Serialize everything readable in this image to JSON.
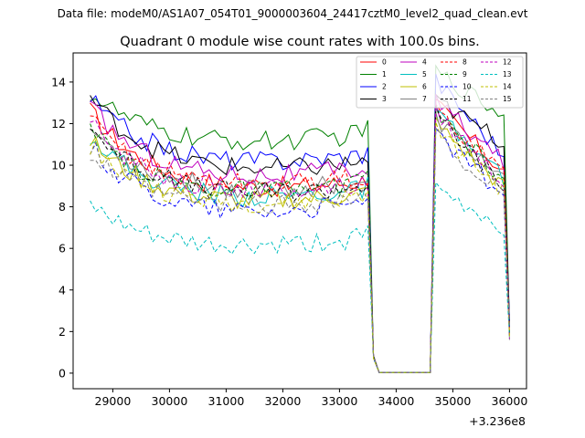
{
  "header": {
    "data_file_label": "Data file: modeM0/AS1A07_054T01_9000003604_24417cztM0_level2_quad_clean.evt"
  },
  "chart_data": {
    "type": "line",
    "title": "Quadrant 0 module wise count rates with 100.0s bins.",
    "xlabel": "",
    "ylabel": "",
    "x_offset_label": "+3.236e8",
    "xlim": [
      28300,
      36300
    ],
    "ylim": [
      -0.75,
      15.4
    ],
    "x_ticks": [
      29000,
      30000,
      31000,
      32000,
      33000,
      34000,
      35000,
      36000
    ],
    "y_ticks": [
      0,
      2,
      4,
      6,
      8,
      10,
      12,
      14
    ],
    "grid": false,
    "legend_position": "top-right",
    "legend_columns": 4,
    "x_start": 28600,
    "x_step": 100,
    "n_points": 75,
    "profile": {
      "first_segment_end_index": 49,
      "drop1": 0.78,
      "drop2": 0.03,
      "gap_start_index": 52,
      "gap_end_index": 60,
      "second_segment_start_index": 61,
      "second_segment_end_index": 73,
      "last_value_fraction": 0.17
    },
    "series": [
      {
        "name": "0",
        "color": "#ff0000",
        "dash": "solid",
        "start": 12.6,
        "mid": 8.3,
        "second_peak": 12.9,
        "second_end": 9.7
      },
      {
        "name": "1",
        "color": "#008000",
        "dash": "solid",
        "start": 13.5,
        "mid": 10.6,
        "second_peak": 14.5,
        "second_end": 12.4
      },
      {
        "name": "2",
        "color": "#0000ff",
        "dash": "solid",
        "start": 13.2,
        "mid": 9.6,
        "second_peak": 14.1,
        "second_end": 10.5
      },
      {
        "name": "3",
        "color": "#000000",
        "dash": "solid",
        "start": 13.3,
        "mid": 9.2,
        "second_peak": 13.1,
        "second_end": 11.1
      },
      {
        "name": "4",
        "color": "#bf00bf",
        "dash": "solid",
        "start": 12.8,
        "mid": 8.9,
        "second_peak": 13.1,
        "second_end": 10.1
      },
      {
        "name": "5",
        "color": "#00bfbf",
        "dash": "solid",
        "start": 11.5,
        "mid": 7.9,
        "second_peak": 12.4,
        "second_end": 9.4
      },
      {
        "name": "6",
        "color": "#bfbf00",
        "dash": "solid",
        "start": 11.2,
        "mid": 7.7,
        "second_peak": 12.0,
        "second_end": 8.9
      },
      {
        "name": "7",
        "color": "#808080",
        "dash": "solid",
        "start": 11.8,
        "mid": 8.3,
        "second_peak": 12.2,
        "second_end": 9.3
      },
      {
        "name": "8",
        "color": "#ff0000",
        "dash": "dashed",
        "start": 12.2,
        "mid": 8.5,
        "second_peak": 12.6,
        "second_end": 9.7
      },
      {
        "name": "9",
        "color": "#008000",
        "dash": "dashed",
        "start": 11.6,
        "mid": 8.2,
        "second_peak": 12.5,
        "second_end": 9.3
      },
      {
        "name": "10",
        "color": "#0000ff",
        "dash": "dashed",
        "start": 10.9,
        "mid": 7.2,
        "second_peak": 11.4,
        "second_end": 8.6
      },
      {
        "name": "11",
        "color": "#000000",
        "dash": "dashed",
        "start": 11.9,
        "mid": 8.1,
        "second_peak": 12.5,
        "second_end": 8.9
      },
      {
        "name": "12",
        "color": "#bf00bf",
        "dash": "dashed",
        "start": 12.0,
        "mid": 8.2,
        "second_peak": 12.6,
        "second_end": 9.2
      },
      {
        "name": "13",
        "color": "#00bfbf",
        "dash": "dashed",
        "start": 8.0,
        "mid": 5.6,
        "second_peak": 8.8,
        "second_end": 7.0
      },
      {
        "name": "14",
        "color": "#bfbf00",
        "dash": "dashed",
        "start": 11.0,
        "mid": 7.6,
        "second_peak": 11.7,
        "second_end": 8.8
      },
      {
        "name": "15",
        "color": "#808080",
        "dash": "dashed",
        "start": 10.5,
        "mid": 7.5,
        "second_peak": 11.4,
        "second_end": 8.4
      }
    ]
  }
}
